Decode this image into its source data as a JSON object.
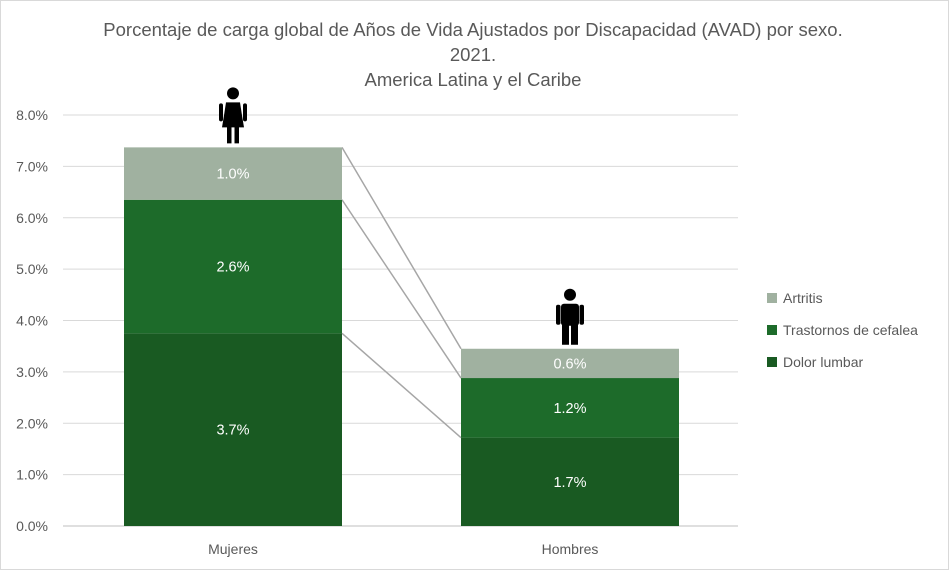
{
  "chart_data": {
    "type": "bar",
    "stacked": true,
    "title_lines": [
      "Porcentaje de carga global de Años de Vida Ajustados por Discapacidad (AVAD) por sexo.",
      "2021.",
      "America Latina y el Caribe"
    ],
    "categories": [
      "Mujeres",
      "Hombres"
    ],
    "category_icons": [
      "female-person-icon",
      "male-person-icon"
    ],
    "series": [
      {
        "name": "Dolor lumbar",
        "values": [
          3.75,
          1.72
        ],
        "labels": [
          "3.7%",
          "1.7%"
        ],
        "color": "#195a22"
      },
      {
        "name": "Trastornos de cefalea",
        "values": [
          2.6,
          1.16
        ],
        "labels": [
          "2.6%",
          "1.2%"
        ],
        "color": "#1d6b2a"
      },
      {
        "name": "Artritis",
        "values": [
          1.02,
          0.57
        ],
        "labels": [
          "1.0%",
          "0.6%"
        ],
        "color": "#a0b1a0"
      }
    ],
    "ylim": [
      0,
      8
    ],
    "yticks": [
      "0.0%",
      "1.0%",
      "2.0%",
      "3.0%",
      "4.0%",
      "5.0%",
      "6.0%",
      "7.0%",
      "8.0%"
    ],
    "ytick_values": [
      0,
      1,
      2,
      3,
      4,
      5,
      6,
      7,
      8
    ],
    "xlabel": "",
    "ylabel": "",
    "grid": true,
    "series_connector_lines": true,
    "legend_position": "right",
    "legend_order": [
      "Artritis",
      "Trastornos de cefalea",
      "Dolor lumbar"
    ],
    "colors": {
      "grid": "#d9d9d9",
      "connector": "#a6a6a6",
      "text": "#595959",
      "icon": "#000000"
    }
  }
}
